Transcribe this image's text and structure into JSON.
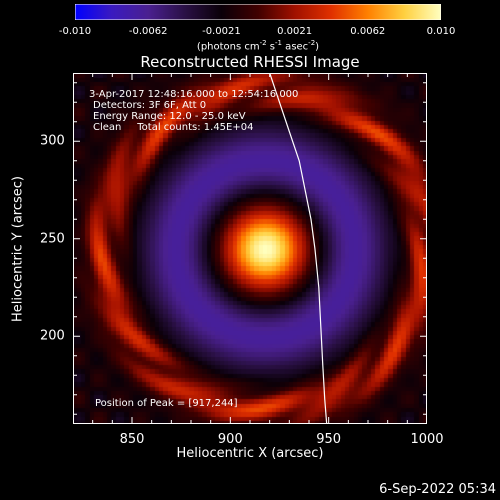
{
  "chart_data": {
    "type": "heatmap",
    "title": "Reconstructed RHESSI Image",
    "xlabel": "Heliocentric X (arcsec)",
    "ylabel": "Heliocentric Y (arcsec)",
    "xlim": [
      820,
      1000
    ],
    "ylim": [
      155,
      335
    ],
    "x_ticks": [
      850,
      900,
      950,
      1000
    ],
    "y_ticks": [
      200,
      250,
      300
    ],
    "colorbar": {
      "ticks": [
        "-0.010",
        "-0.0062",
        "-0.0021",
        "0.0021",
        "0.0062",
        "0.010"
      ],
      "range": [
        -0.01,
        0.01
      ],
      "label_parts": [
        "(photons cm",
        "-2",
        " s",
        "-1",
        " asec",
        "-2",
        ")"
      ]
    },
    "annotations": [
      "3-Apr-2017 12:48:16.000 to 12:54:16.000",
      "Detectors: 3F 6F, Att 0",
      "Energy Range: 12.0 - 25.0 keV",
      "Clean     Total counts: 1.45E+04"
    ],
    "peak_text": "Position of Peak = [917,244]",
    "peak": [
      917,
      244
    ],
    "limb_curve": [
      [
        920,
        335
      ],
      [
        925,
        320
      ],
      [
        930,
        305
      ],
      [
        935,
        290
      ],
      [
        938,
        275
      ],
      [
        941,
        260
      ],
      [
        943,
        245
      ],
      [
        945,
        225
      ],
      [
        946,
        205
      ],
      [
        947,
        185
      ],
      [
        948,
        168
      ],
      [
        949,
        155
      ]
    ],
    "timestamp": "6-Sep-2022 05:34"
  },
  "colors": {
    "colormap": [
      "#0000ff",
      "#3a1ac0",
      "#4a2090",
      "#2a1045",
      "#0a0008",
      "#400000",
      "#a01000",
      "#e03000",
      "#ff8000",
      "#ffd040",
      "#ffffc0"
    ]
  }
}
